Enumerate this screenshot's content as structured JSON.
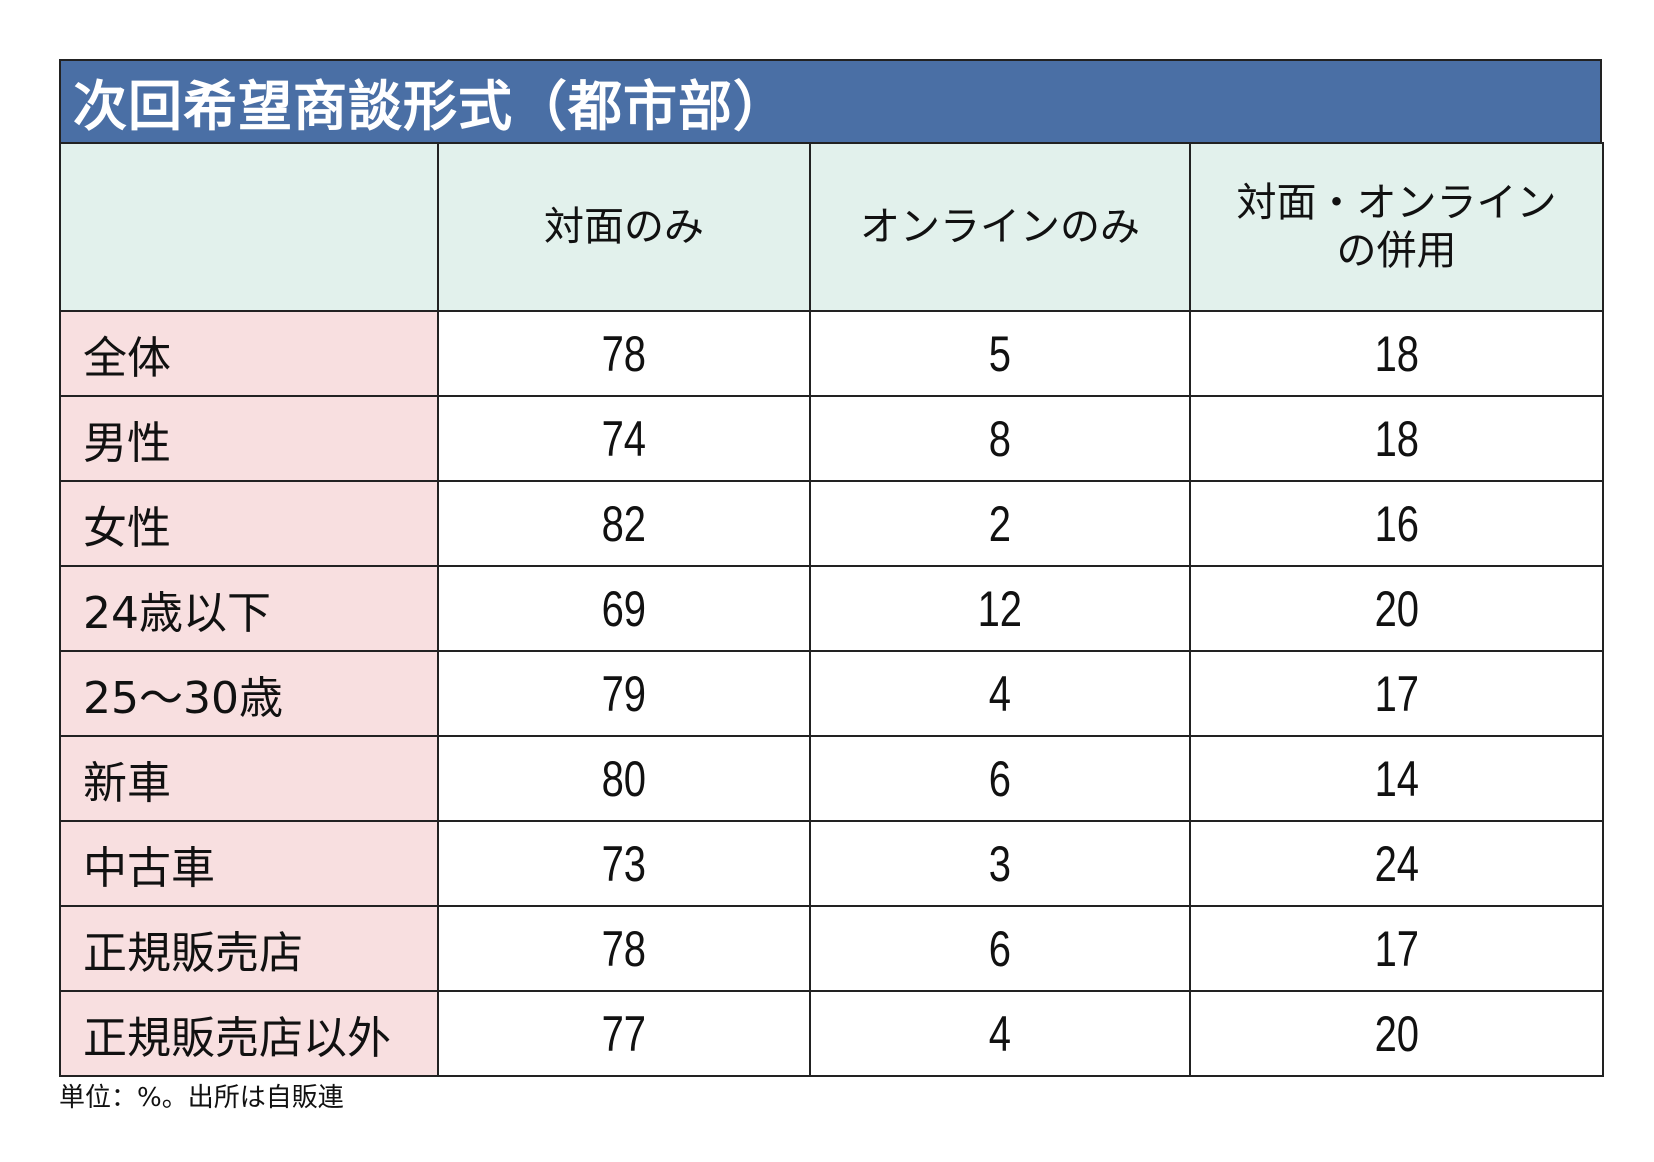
{
  "title": "次回希望商談形式（都市部）",
  "columns": [
    "",
    "対面のみ",
    "オンラインのみ",
    [
      "対面・オンライン",
      "の併用"
    ]
  ],
  "rows": [
    {
      "label": "全体",
      "values": [
        "78",
        "5",
        "18"
      ]
    },
    {
      "label": "男性",
      "values": [
        "74",
        "8",
        "18"
      ]
    },
    {
      "label": "女性",
      "values": [
        "82",
        "2",
        "16"
      ]
    },
    {
      "label": "24歳以下",
      "values": [
        "69",
        "12",
        "20"
      ]
    },
    {
      "label": "25～30歳",
      "values": [
        "79",
        "4",
        "17"
      ]
    },
    {
      "label": "新車",
      "values": [
        "80",
        "6",
        "14"
      ]
    },
    {
      "label": "中古車",
      "values": [
        "73",
        "3",
        "24"
      ]
    },
    {
      "label": "正規販売店",
      "values": [
        "78",
        "6",
        "17"
      ]
    },
    {
      "label": "正規販売店以外",
      "values": [
        "77",
        "4",
        "20"
      ]
    }
  ],
  "footnote": "単位：%。出所は自販連",
  "colors": {
    "title_bg": "#4a6fa5",
    "header_bg": "#e2f1ec",
    "label_bg": "#f8dfe0"
  }
}
